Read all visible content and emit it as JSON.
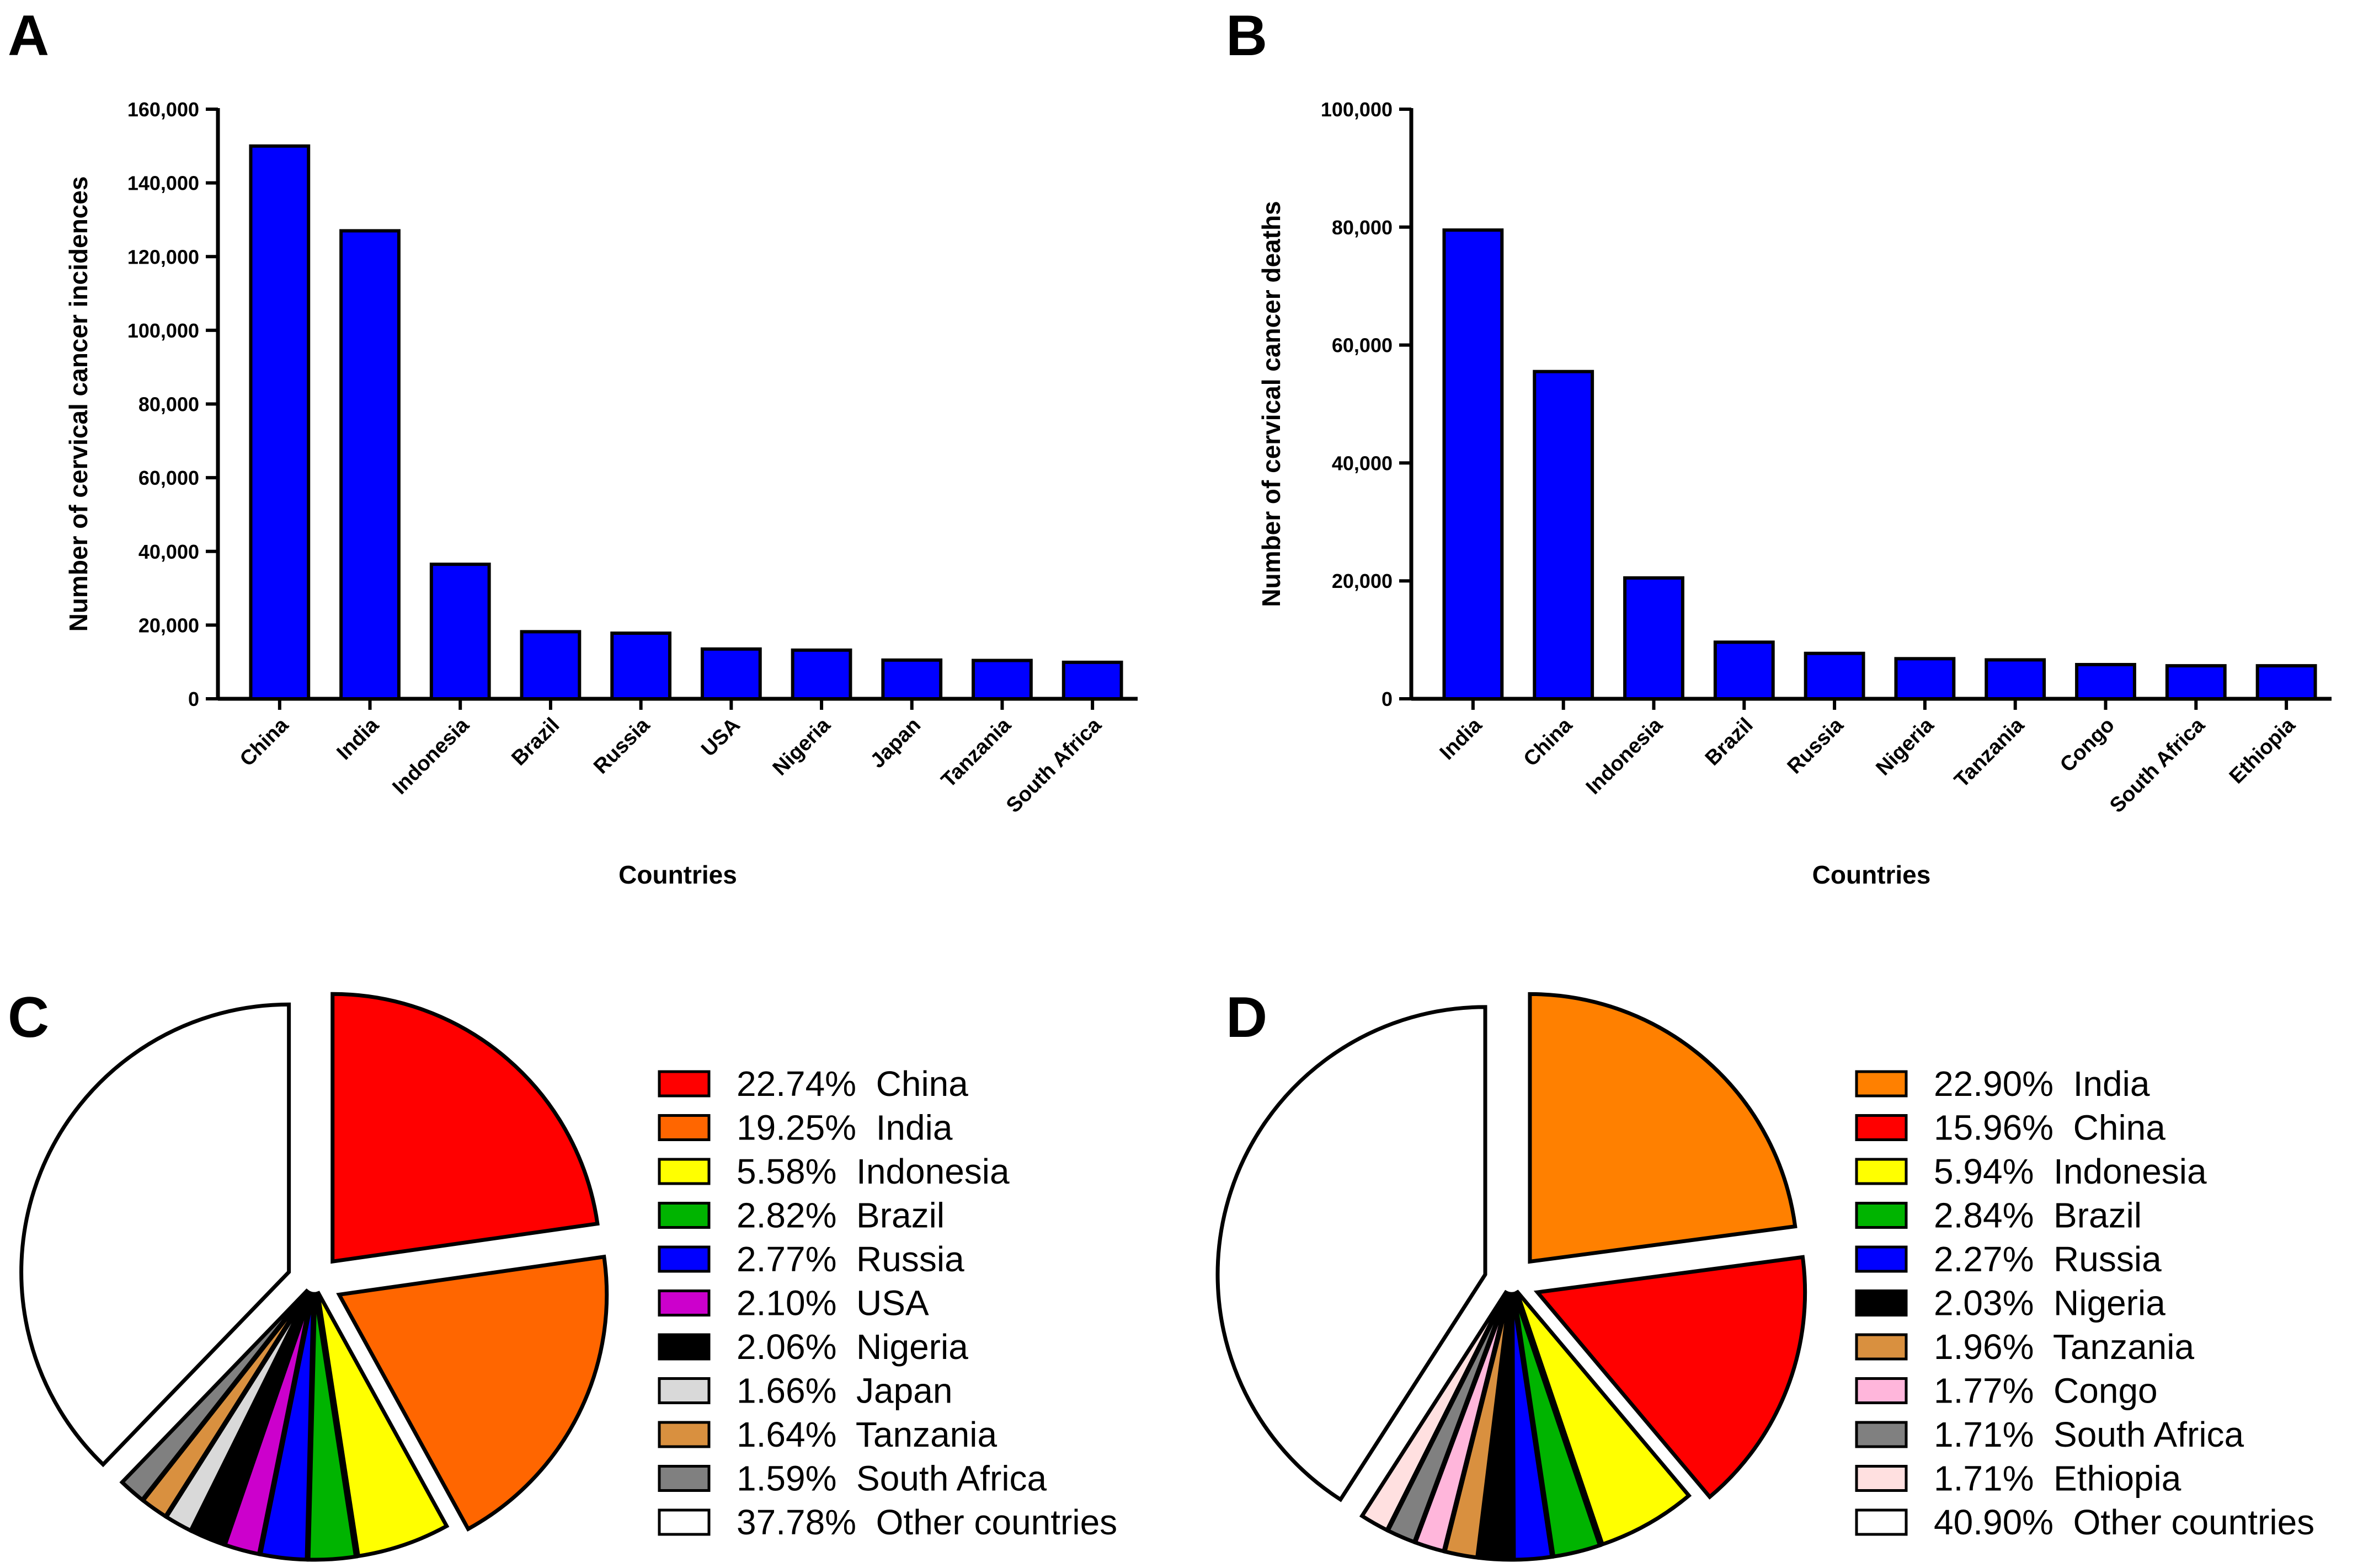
{
  "chart_data": [
    {
      "panel": "A",
      "type": "bar",
      "categories": [
        "China",
        "India",
        "Indonesia",
        "Brazil",
        "Russia",
        "USA",
        "Nigeria",
        "Japan",
        "Tanzania",
        "South Africa"
      ],
      "values": [
        150000,
        127000,
        36500,
        18200,
        17800,
        13500,
        13200,
        10500,
        10400,
        9900
      ],
      "xlabel": "Countries",
      "ylabel": "Number of cervical cancer incidences",
      "ylim": [
        0,
        160000
      ],
      "yticks": [
        0,
        20000,
        40000,
        60000,
        80000,
        100000,
        120000,
        140000,
        160000
      ],
      "ytick_labels": [
        "0",
        "20,000",
        "40,000",
        "60,000",
        "80,000",
        "100,000",
        "120,000",
        "140,000",
        "160,000"
      ],
      "bar_color": "#0000FF",
      "grid": false
    },
    {
      "panel": "B",
      "type": "bar",
      "categories": [
        "India",
        "China",
        "Indonesia",
        "Brazil",
        "Russia",
        "Nigeria",
        "Tanzania",
        "Congo",
        "South Africa",
        "Ethiopia"
      ],
      "values": [
        79500,
        55500,
        20500,
        9600,
        7700,
        6800,
        6600,
        5800,
        5600,
        5600
      ],
      "xlabel": "Countries",
      "ylabel": "Number of cervical cancer deaths",
      "ylim": [
        0,
        100000
      ],
      "yticks": [
        0,
        20000,
        40000,
        60000,
        80000,
        100000
      ],
      "ytick_labels": [
        "0",
        "20,000",
        "40,000",
        "60,000",
        "80,000",
        "100,000"
      ],
      "bar_color": "#0000FF",
      "grid": false
    },
    {
      "panel": "C",
      "type": "pie",
      "legend_position": "right",
      "slices": [
        {
          "label": "22.74%  China",
          "value": 22.74,
          "color": "#FF0000"
        },
        {
          "label": "19.25%  India",
          "value": 19.25,
          "color": "#FF6600"
        },
        {
          "label": "5.58%  Indonesia",
          "value": 5.58,
          "color": "#FFFF00"
        },
        {
          "label": "2.82%  Brazil",
          "value": 2.82,
          "color": "#00B400"
        },
        {
          "label": "2.77%  Russia",
          "value": 2.77,
          "color": "#0000FF"
        },
        {
          "label": "2.10%  USA",
          "value": 2.1,
          "color": "#CC00CC"
        },
        {
          "label": "2.06%  Nigeria",
          "value": 2.06,
          "color": "#000000"
        },
        {
          "label": "1.66%  Japan",
          "value": 1.66,
          "color": "#D9D9D9"
        },
        {
          "label": "1.64%  Tanzania",
          "value": 1.64,
          "color": "#D9903F"
        },
        {
          "label": "1.59%  South Africa",
          "value": 1.59,
          "color": "#808080"
        },
        {
          "label": "37.78%  Other countries",
          "value": 37.78,
          "color": "#FFFFFF"
        }
      ]
    },
    {
      "panel": "D",
      "type": "pie",
      "legend_position": "right",
      "slices": [
        {
          "label": "22.90%  India",
          "value": 22.9,
          "color": "#FF8000"
        },
        {
          "label": "15.96%  China",
          "value": 15.96,
          "color": "#FF0000"
        },
        {
          "label": "5.94%  Indonesia",
          "value": 5.94,
          "color": "#FFFF00"
        },
        {
          "label": "2.84%  Brazil",
          "value": 2.84,
          "color": "#00B400"
        },
        {
          "label": "2.27%  Russia",
          "value": 2.27,
          "color": "#0000FF"
        },
        {
          "label": "2.03%  Nigeria",
          "value": 2.03,
          "color": "#000000"
        },
        {
          "label": "1.96%  Tanzania",
          "value": 1.96,
          "color": "#D9903F"
        },
        {
          "label": "1.77%  Congo",
          "value": 1.77,
          "color": "#FFB6DB"
        },
        {
          "label": "1.71%  South Africa",
          "value": 1.71,
          "color": "#808080"
        },
        {
          "label": "1.71%  Ethiopia",
          "value": 1.71,
          "color": "#FFE0E0"
        },
        {
          "label": "40.90%  Other countries",
          "value": 40.9,
          "color": "#FFFFFF"
        }
      ]
    }
  ]
}
